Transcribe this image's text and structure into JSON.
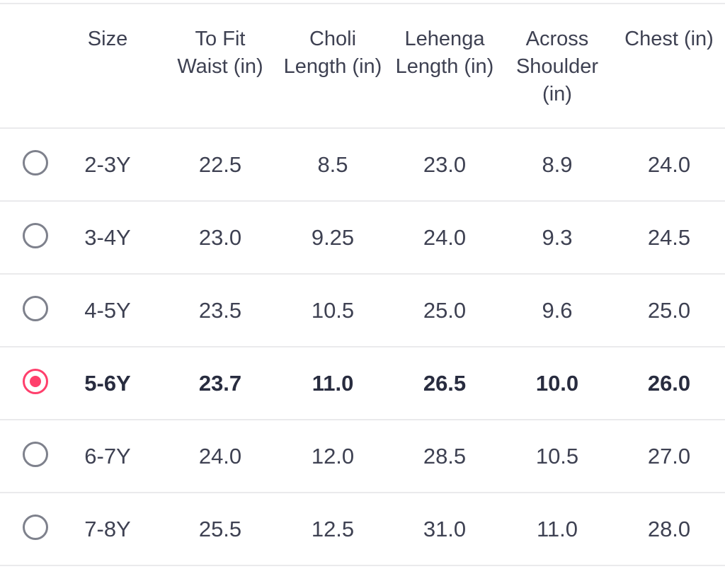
{
  "size_chart": {
    "headers": {
      "size": "Size",
      "waist": "To Fit\nWaist (in)",
      "choli": "Choli\nLength (in)",
      "lehenga": "Lehenga\nLength (in)",
      "across": "Across\nShoulder\n(in)",
      "chest": "Chest (in)"
    },
    "rows": [
      {
        "size": "2-3Y",
        "waist": "22.5",
        "choli": "8.5",
        "lehenga": "23.0",
        "across": "8.9",
        "chest": "24.0",
        "selected": false
      },
      {
        "size": "3-4Y",
        "waist": "23.0",
        "choli": "9.25",
        "lehenga": "24.0",
        "across": "9.3",
        "chest": "24.5",
        "selected": false
      },
      {
        "size": "4-5Y",
        "waist": "23.5",
        "choli": "10.5",
        "lehenga": "25.0",
        "across": "9.6",
        "chest": "25.0",
        "selected": false
      },
      {
        "size": "5-6Y",
        "waist": "23.7",
        "choli": "11.0",
        "lehenga": "26.5",
        "across": "10.0",
        "chest": "26.0",
        "selected": true
      },
      {
        "size": "6-7Y",
        "waist": "24.0",
        "choli": "12.0",
        "lehenga": "28.5",
        "across": "10.5",
        "chest": "27.0",
        "selected": false
      },
      {
        "size": "7-8Y",
        "waist": "25.5",
        "choli": "12.5",
        "lehenga": "31.0",
        "across": "11.0",
        "chest": "28.0",
        "selected": false
      }
    ]
  },
  "colors": {
    "accent": "#ff3f6c",
    "text": "#3e4152",
    "divider": "#eaeaec",
    "radio_border": "#7e818c"
  }
}
